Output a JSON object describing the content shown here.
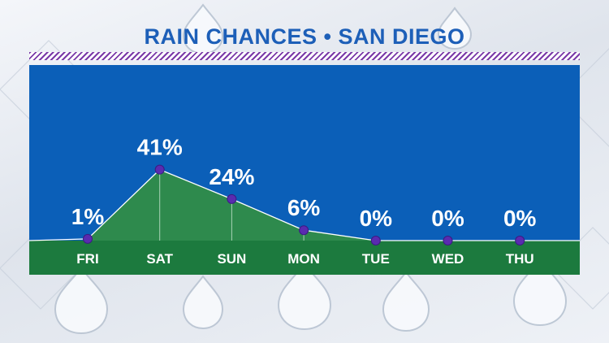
{
  "colors": {
    "panel_blue": "#0b5fb8",
    "ground_green": "#1c7a3e",
    "area_green": "#2e8a4d",
    "marker_purple": "#5a2bb0",
    "title_blue": "#1d5fb8",
    "divider_purple": "#7a3aa8"
  },
  "chart_data": {
    "type": "area",
    "title": "RAIN CHANCES • SAN DIEGO",
    "categories": [
      "FRI",
      "SAT",
      "SUN",
      "MON",
      "TUE",
      "WED",
      "THU"
    ],
    "values": [
      1,
      41,
      24,
      6,
      0,
      0,
      0
    ],
    "value_labels": [
      "1%",
      "41%",
      "24%",
      "6%",
      "0%",
      "0%",
      "0%"
    ],
    "unit": "%",
    "ylim": [
      0,
      100
    ],
    "grid": false,
    "legend": "none"
  }
}
